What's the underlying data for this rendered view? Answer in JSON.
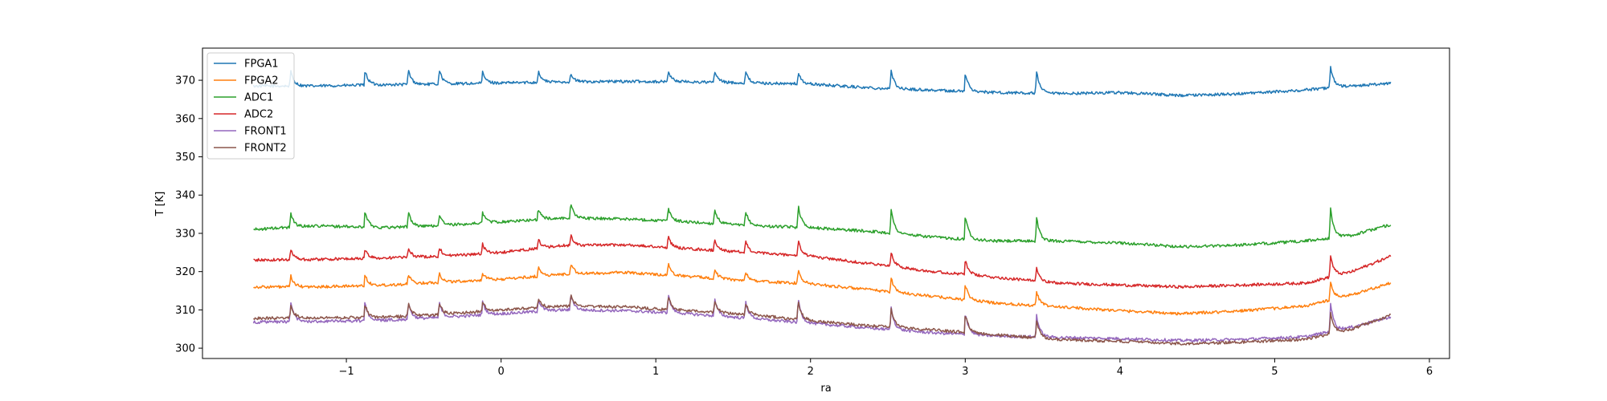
{
  "chart_data": {
    "type": "line",
    "title": "",
    "xlabel": "ra",
    "ylabel": "T [K]",
    "xlim": [
      -1.93,
      6.13
    ],
    "ylim": [
      297.3,
      378.4
    ],
    "xticks": [
      -1,
      0,
      1,
      2,
      3,
      4,
      5,
      6
    ],
    "xtick_labels": [
      "−1",
      "0",
      "1",
      "2",
      "3",
      "4",
      "5",
      "6"
    ],
    "yticks": [
      300,
      310,
      320,
      330,
      340,
      350,
      360,
      370
    ],
    "ytick_labels": [
      "300",
      "310",
      "320",
      "330",
      "340",
      "350",
      "360",
      "370"
    ],
    "grid": false,
    "legend_position": "top-left",
    "x": [
      -1.6,
      -1.2,
      -0.8,
      -0.4,
      0.0,
      0.4,
      0.8,
      1.2,
      1.6,
      2.0,
      2.4,
      2.8,
      3.2,
      3.6,
      4.0,
      4.4,
      4.8,
      5.2,
      5.5,
      5.75
    ],
    "spikes": [
      -1.36,
      -0.88,
      -0.6,
      -0.4,
      -0.12,
      0.24,
      0.45,
      1.08,
      1.38,
      1.58,
      1.92,
      2.52,
      3.0,
      3.46,
      5.36
    ],
    "series": [
      {
        "name": "FPGA1",
        "color": "#1f77b4",
        "values": [
          368.5,
          368.5,
          368.8,
          369.0,
          369.3,
          369.6,
          369.7,
          369.6,
          369.3,
          369.0,
          368.0,
          367.4,
          366.8,
          366.5,
          366.8,
          366.0,
          366.5,
          367.5,
          368.5,
          369.2
        ],
        "spike_heights": [
          4.0,
          4.0,
          4.0,
          4.0,
          3.0,
          3.0,
          2.0,
          3.0,
          3.0,
          3.0,
          3.0,
          5.0,
          5.0,
          6.0,
          6.0
        ]
      },
      {
        "name": "FPGA2",
        "color": "#ff7f0e",
        "values": [
          316.0,
          316.0,
          316.4,
          317.2,
          318.0,
          319.3,
          319.8,
          318.8,
          317.6,
          316.8,
          315.2,
          313.5,
          311.8,
          310.8,
          309.8,
          309.0,
          309.8,
          311.0,
          314.0,
          317.0
        ],
        "spike_heights": [
          3.0,
          3.0,
          2.5,
          2.5,
          2.0,
          2.5,
          3.0,
          3.0,
          2.5,
          2.5,
          3.5,
          4.0,
          4.0,
          4.0,
          5.0
        ]
      },
      {
        "name": "ADC1",
        "color": "#2ca02c",
        "values": [
          331.0,
          332.0,
          331.5,
          332.0,
          333.0,
          334.0,
          333.8,
          333.0,
          332.0,
          331.5,
          330.5,
          329.0,
          328.0,
          328.0,
          327.5,
          326.5,
          327.0,
          328.0,
          329.5,
          332.3
        ],
        "spike_heights": [
          4.0,
          4.5,
          4.0,
          3.0,
          3.0,
          3.0,
          4.0,
          3.5,
          4.0,
          4.0,
          6.0,
          6.5,
          6.5,
          6.5,
          8.0
        ]
      },
      {
        "name": "ADC2",
        "color": "#d62728",
        "values": [
          323.0,
          323.2,
          323.5,
          324.0,
          325.0,
          326.8,
          327.0,
          326.0,
          325.0,
          324.0,
          322.0,
          320.0,
          318.5,
          317.0,
          316.5,
          316.0,
          316.5,
          317.0,
          320.0,
          324.0
        ],
        "spike_heights": [
          3.0,
          2.5,
          2.5,
          2.5,
          2.5,
          2.5,
          3.0,
          3.0,
          3.0,
          3.0,
          4.0,
          4.0,
          4.0,
          4.0,
          6.0
        ]
      },
      {
        "name": "FRONT1",
        "color": "#9467bd",
        "values": [
          306.8,
          307.0,
          307.2,
          308.0,
          309.0,
          310.0,
          309.8,
          309.0,
          307.8,
          306.5,
          305.2,
          304.0,
          303.2,
          302.8,
          302.5,
          302.0,
          302.3,
          303.0,
          305.5,
          308.2
        ],
        "spike_heights": [
          5.5,
          5.0,
          4.5,
          4.0,
          3.5,
          3.5,
          4.5,
          5.0,
          4.5,
          4.5,
          6.5,
          6.0,
          6.0,
          6.0,
          8.0
        ]
      },
      {
        "name": "FRONT2",
        "color": "#8c564b",
        "values": [
          307.8,
          308.0,
          308.0,
          308.8,
          310.0,
          311.0,
          310.8,
          309.8,
          308.8,
          307.2,
          305.8,
          304.8,
          303.5,
          302.2,
          301.8,
          301.2,
          301.6,
          302.3,
          305.0,
          308.6
        ],
        "spike_heights": [
          3.5,
          3.5,
          3.5,
          3.0,
          2.5,
          2.5,
          3.0,
          3.5,
          3.0,
          3.0,
          5.0,
          5.0,
          5.0,
          5.0,
          6.0
        ]
      }
    ]
  }
}
